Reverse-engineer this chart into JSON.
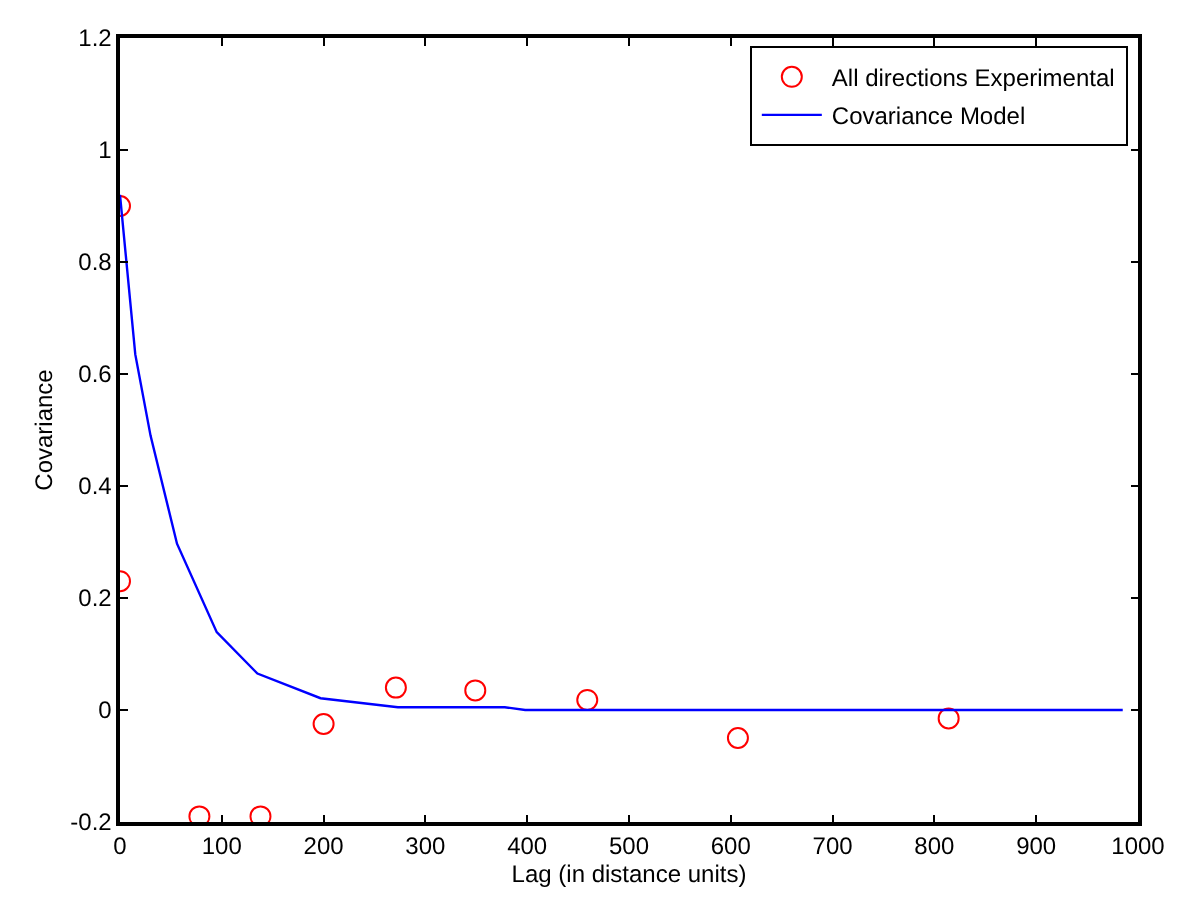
{
  "chart_data": {
    "type": "scatter",
    "xlabel": "Lag (in distance units)",
    "ylabel": "Covariance",
    "xlim": [
      0,
      1000
    ],
    "ylim": [
      -0.2,
      1.2
    ],
    "xticks": [
      0,
      100,
      200,
      300,
      400,
      500,
      600,
      700,
      800,
      900,
      1000
    ],
    "yticks": [
      -0.2,
      0,
      0.2,
      0.4,
      0.6,
      0.8,
      1,
      1.2
    ],
    "legend": "top right",
    "series": [
      {
        "name": "All directions Experimental",
        "marker": "circle",
        "color": "#ff0000",
        "x": [
          0,
          0,
          78,
          138,
          200,
          271,
          349,
          459,
          607,
          814
        ],
        "values": [
          0.9,
          0.23,
          -0.19,
          -0.19,
          -0.025,
          0.04,
          0.035,
          0.018,
          -0.05,
          -0.015
        ]
      },
      {
        "name": "Covariance Model",
        "type": "line",
        "marker": "none",
        "line_style": "solid",
        "color": "#0000ff",
        "x": [
          0,
          15,
          30,
          56,
          95,
          135,
          197,
          273,
          378,
          398,
          985
        ],
        "values": [
          0.92,
          0.635,
          0.49,
          0.297,
          0.139,
          0.065,
          0.021,
          0.005,
          0.005,
          0,
          0
        ]
      }
    ]
  }
}
